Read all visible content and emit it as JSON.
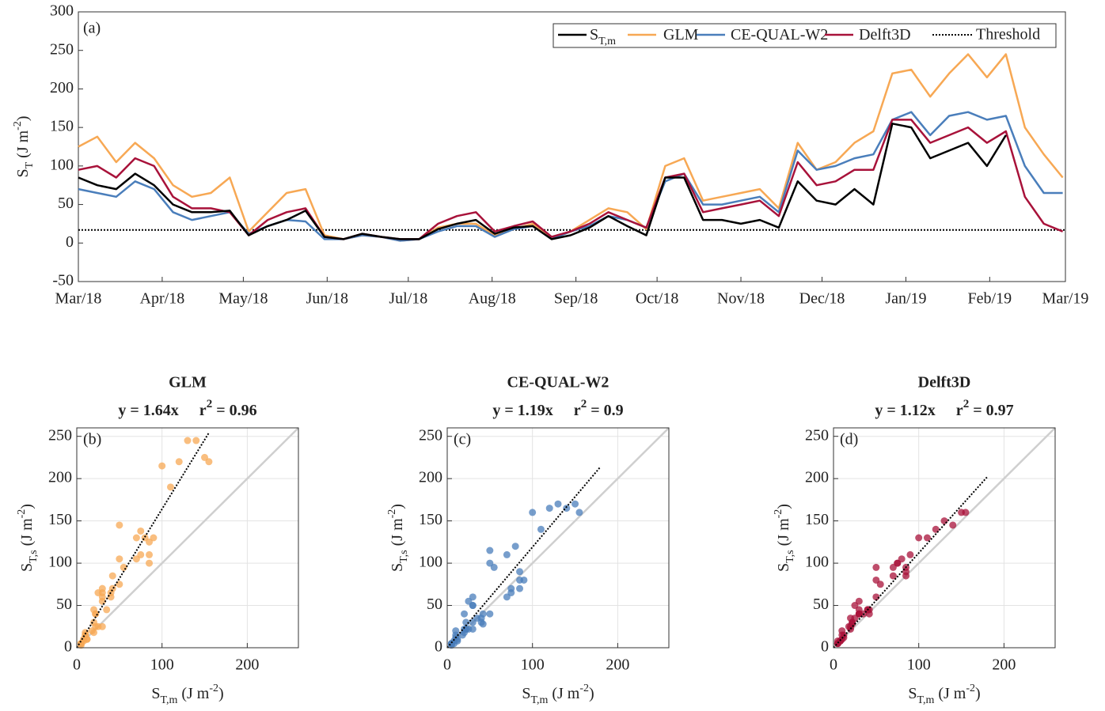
{
  "chart_data": [
    {
      "type": "line",
      "panel_label": "(a)",
      "ylabel": [
        {
          "text": "S"
        },
        {
          "text": "T",
          "shift": "sub"
        },
        {
          "text": " (J m"
        },
        {
          "text": "-2",
          "shift": "super"
        },
        {
          "text": ")"
        }
      ],
      "x": [
        0,
        7,
        14,
        21,
        28,
        35,
        42,
        49,
        56,
        63,
        70,
        77,
        84,
        91,
        98,
        105,
        112,
        119,
        126,
        133,
        140,
        147,
        154,
        161,
        168,
        175,
        182,
        189,
        196,
        203,
        210,
        217,
        224,
        231,
        238,
        245,
        252,
        259,
        266,
        273,
        280,
        287,
        294,
        301,
        308,
        315,
        322,
        329,
        336,
        343,
        350,
        357,
        364
      ],
      "xlim": [
        0,
        365
      ],
      "xticks": [
        {
          "value": 0,
          "label": "Mar/18"
        },
        {
          "value": 31,
          "label": "Apr/18"
        },
        {
          "value": 61,
          "label": "May/18"
        },
        {
          "value": 92,
          "label": "Jun/18"
        },
        {
          "value": 122,
          "label": "Jul/18"
        },
        {
          "value": 153,
          "label": "Aug/18"
        },
        {
          "value": 184,
          "label": "Sep/18"
        },
        {
          "value": 214,
          "label": "Oct/18"
        },
        {
          "value": 245,
          "label": "Nov/18"
        },
        {
          "value": 275,
          "label": "Dec/18"
        },
        {
          "value": 306,
          "label": "Jan/19"
        },
        {
          "value": 337,
          "label": "Feb/19"
        },
        {
          "value": 365,
          "label": "Mar/19"
        }
      ],
      "ylim": [
        -50,
        300
      ],
      "yticks": [
        -50,
        0,
        50,
        100,
        150,
        200,
        250,
        300
      ],
      "grid": false,
      "series": [
        {
          "name": "S",
          "name_sub": "T,m",
          "color": "#000000",
          "values": [
            85,
            75,
            70,
            90,
            75,
            50,
            40,
            40,
            42,
            10,
            22,
            30,
            42,
            8,
            5,
            12,
            8,
            5,
            5,
            18,
            25,
            30,
            12,
            20,
            22,
            5,
            10,
            20,
            35,
            22,
            10,
            85,
            85,
            30,
            30,
            25,
            30,
            20,
            80,
            55,
            50,
            70,
            50,
            155,
            150,
            110,
            120,
            130,
            100,
            140,
            null,
            null,
            null
          ]
        },
        {
          "name": "GLM",
          "color": "#f7a854",
          "values": [
            125,
            138,
            105,
            130,
            110,
            75,
            60,
            65,
            85,
            15,
            40,
            65,
            70,
            10,
            5,
            10,
            8,
            3,
            5,
            20,
            25,
            25,
            10,
            18,
            25,
            5,
            15,
            30,
            45,
            40,
            18,
            100,
            110,
            55,
            60,
            65,
            70,
            45,
            130,
            95,
            105,
            130,
            145,
            220,
            225,
            190,
            220,
            245,
            215,
            245,
            150,
            115,
            85
          ]
        },
        {
          "name": "CE-QUAL-W2",
          "color": "#4a7ebb",
          "values": [
            70,
            65,
            60,
            80,
            70,
            40,
            30,
            35,
            40,
            12,
            22,
            30,
            28,
            5,
            5,
            10,
            8,
            3,
            5,
            15,
            22,
            22,
            8,
            18,
            22,
            5,
            15,
            22,
            35,
            30,
            20,
            80,
            90,
            50,
            50,
            55,
            60,
            40,
            120,
            95,
            100,
            110,
            115,
            160,
            170,
            140,
            165,
            170,
            160,
            165,
            100,
            65,
            65
          ]
        },
        {
          "name": "Delft3D",
          "color": "#a8123a",
          "values": [
            95,
            100,
            85,
            110,
            100,
            60,
            45,
            45,
            40,
            10,
            30,
            40,
            45,
            8,
            5,
            12,
            8,
            5,
            5,
            25,
            35,
            40,
            15,
            22,
            28,
            8,
            15,
            25,
            40,
            30,
            20,
            85,
            90,
            40,
            45,
            50,
            55,
            35,
            105,
            75,
            80,
            95,
            95,
            160,
            160,
            130,
            140,
            150,
            130,
            145,
            60,
            25,
            15
          ]
        }
      ],
      "threshold": {
        "name": "Threshold",
        "value": 17,
        "color": "#000000"
      }
    },
    {
      "type": "scatter",
      "title": "GLM",
      "panel_label": "(b)",
      "color": "#f7a854",
      "equation": "y = 1.64x",
      "r2": [
        {
          "text": "r"
        },
        {
          "text": "2",
          "shift": "super"
        },
        {
          "text": " = 0.96"
        }
      ],
      "fit": {
        "slope": 1.64,
        "xmax": 155
      },
      "xlabel": [
        {
          "text": "S"
        },
        {
          "text": "T,m",
          "shift": "sub"
        },
        {
          "text": " (J m"
        },
        {
          "text": "-2",
          "shift": "super"
        },
        {
          "text": ")"
        }
      ],
      "ylabel": [
        {
          "text": "S"
        },
        {
          "text": "T,s",
          "shift": "sub"
        },
        {
          "text": " (J m"
        },
        {
          "text": "-2",
          "shift": "super"
        },
        {
          "text": ")"
        }
      ],
      "xlim": [
        0,
        260
      ],
      "ylim": [
        0,
        260
      ],
      "xticks": [
        0,
        100,
        200
      ],
      "yticks": [
        0,
        50,
        100,
        150,
        200,
        250
      ],
      "grid": true,
      "x": [
        85,
        75,
        70,
        90,
        75,
        50,
        40,
        40,
        42,
        10,
        22,
        30,
        42,
        8,
        5,
        12,
        8,
        5,
        5,
        18,
        25,
        30,
        12,
        20,
        22,
        5,
        10,
        20,
        35,
        22,
        10,
        85,
        85,
        30,
        30,
        25,
        30,
        20,
        80,
        55,
        50,
        70,
        50,
        155,
        150,
        110,
        120,
        130,
        100,
        140
      ],
      "y": [
        125,
        138,
        105,
        130,
        110,
        75,
        60,
        65,
        85,
        15,
        40,
        65,
        70,
        10,
        5,
        10,
        8,
        3,
        5,
        20,
        25,
        25,
        10,
        18,
        25,
        5,
        15,
        30,
        45,
        40,
        18,
        100,
        110,
        55,
        60,
        65,
        70,
        45,
        130,
        95,
        105,
        130,
        145,
        220,
        225,
        190,
        220,
        245,
        215,
        245
      ]
    },
    {
      "type": "scatter",
      "title": "CE-QUAL-W2",
      "panel_label": "(c)",
      "color": "#4a7ebb",
      "equation": "y = 1.19x",
      "r2": [
        {
          "text": "r"
        },
        {
          "text": "2",
          "shift": "super"
        },
        {
          "text": " = 0.9"
        }
      ],
      "fit": {
        "slope": 1.19,
        "xmax": 180
      },
      "xlabel": [
        {
          "text": "S"
        },
        {
          "text": "T,m",
          "shift": "sub"
        },
        {
          "text": " (J m"
        },
        {
          "text": "-2",
          "shift": "super"
        },
        {
          "text": ")"
        }
      ],
      "ylabel": [
        {
          "text": "S"
        },
        {
          "text": "T,s",
          "shift": "sub"
        },
        {
          "text": " (J m"
        },
        {
          "text": "-2",
          "shift": "super"
        },
        {
          "text": ")"
        }
      ],
      "xlim": [
        0,
        260
      ],
      "ylim": [
        0,
        260
      ],
      "xticks": [
        0,
        100,
        200
      ],
      "yticks": [
        0,
        50,
        100,
        150,
        200,
        250
      ],
      "grid": true,
      "x": [
        85,
        75,
        70,
        90,
        75,
        50,
        40,
        40,
        42,
        10,
        22,
        30,
        42,
        8,
        5,
        12,
        8,
        5,
        5,
        18,
        25,
        30,
        12,
        20,
        22,
        5,
        10,
        20,
        35,
        22,
        10,
        85,
        85,
        30,
        30,
        25,
        30,
        20,
        80,
        55,
        50,
        70,
        50,
        155,
        150,
        110,
        120,
        130,
        100,
        140
      ],
      "y": [
        70,
        65,
        60,
        80,
        70,
        40,
        30,
        35,
        40,
        12,
        22,
        30,
        28,
        5,
        5,
        10,
        8,
        3,
        5,
        15,
        22,
        22,
        8,
        18,
        22,
        5,
        15,
        22,
        35,
        30,
        20,
        80,
        90,
        50,
        50,
        55,
        60,
        40,
        120,
        95,
        100,
        110,
        115,
        160,
        170,
        140,
        165,
        170,
        160,
        165
      ]
    },
    {
      "type": "scatter",
      "title": "Delft3D",
      "panel_label": "(d)",
      "color": "#a8123a",
      "equation": "y = 1.12x",
      "r2": [
        {
          "text": "r"
        },
        {
          "text": "2",
          "shift": "super"
        },
        {
          "text": " = 0.97"
        }
      ],
      "fit": {
        "slope": 1.12,
        "xmax": 180
      },
      "xlabel": [
        {
          "text": "S"
        },
        {
          "text": "T,m",
          "shift": "sub"
        },
        {
          "text": " (J m"
        },
        {
          "text": "-2",
          "shift": "super"
        },
        {
          "text": ")"
        }
      ],
      "ylabel": [
        {
          "text": "S"
        },
        {
          "text": "T,s",
          "shift": "sub"
        },
        {
          "text": " (J m"
        },
        {
          "text": "-2",
          "shift": "super"
        },
        {
          "text": ")"
        }
      ],
      "xlim": [
        0,
        260
      ],
      "ylim": [
        0,
        260
      ],
      "xticks": [
        0,
        100,
        200
      ],
      "yticks": [
        0,
        50,
        100,
        150,
        200,
        250
      ],
      "grid": true,
      "x": [
        85,
        75,
        70,
        90,
        75,
        50,
        40,
        40,
        42,
        10,
        22,
        30,
        42,
        8,
        5,
        12,
        8,
        5,
        5,
        18,
        25,
        30,
        12,
        20,
        22,
        5,
        10,
        20,
        35,
        22,
        10,
        85,
        85,
        30,
        30,
        25,
        30,
        20,
        80,
        55,
        50,
        70,
        50,
        155,
        150,
        110,
        120,
        130,
        100,
        140
      ],
      "y": [
        95,
        100,
        85,
        110,
        100,
        60,
        45,
        45,
        40,
        10,
        30,
        40,
        45,
        8,
        5,
        12,
        8,
        5,
        5,
        25,
        35,
        40,
        15,
        22,
        28,
        8,
        15,
        25,
        40,
        30,
        20,
        85,
        90,
        40,
        45,
        50,
        55,
        35,
        105,
        75,
        80,
        95,
        95,
        160,
        160,
        130,
        140,
        150,
        130,
        145
      ]
    }
  ]
}
